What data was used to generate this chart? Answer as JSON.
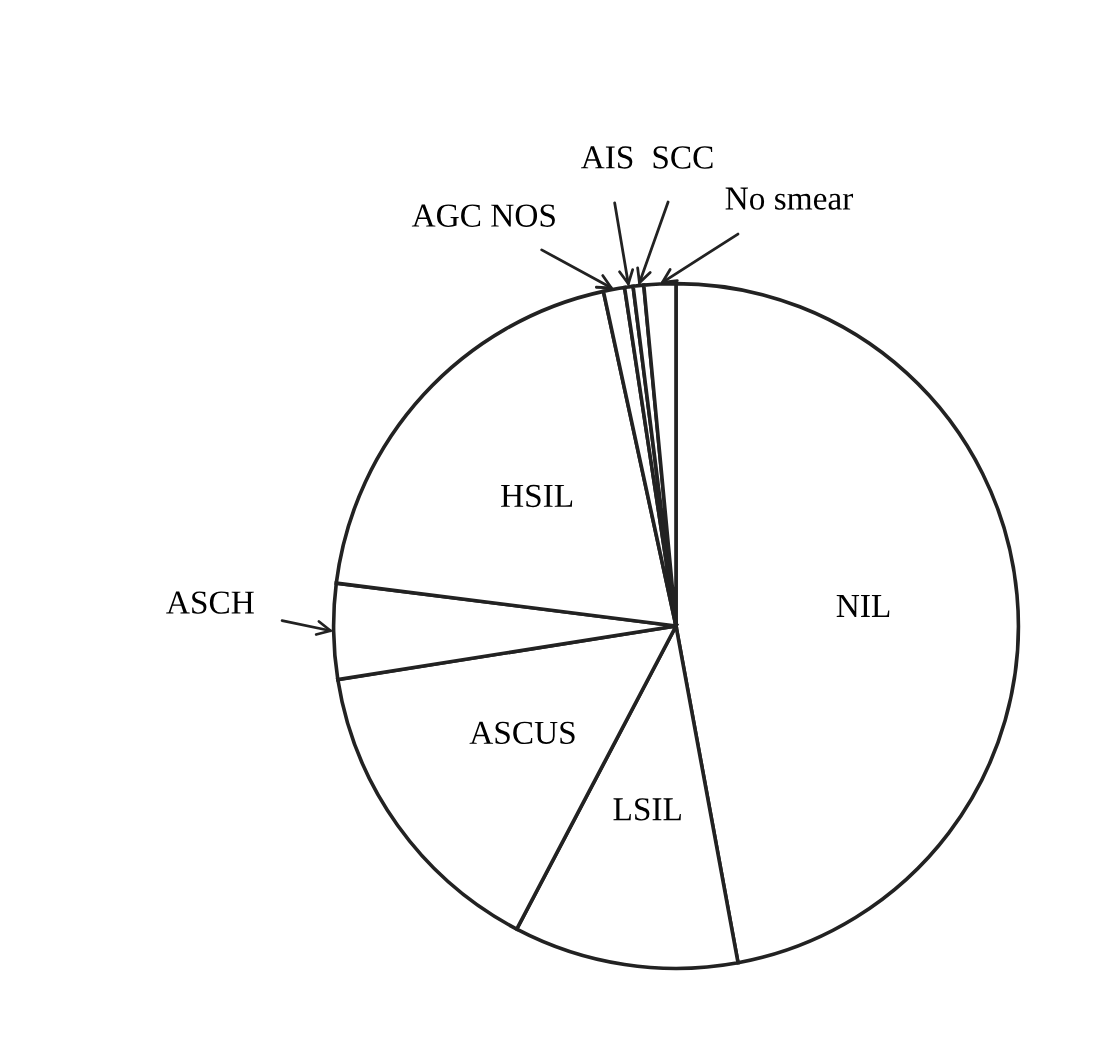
{
  "chart_data": {
    "type": "pie",
    "categories": [
      "NIL",
      "LSIL",
      "ASCUS",
      "ASCH",
      "HSIL",
      "AGC NOS",
      "AIS",
      "SCC",
      "No smear"
    ],
    "values": [
      47.1,
      10.6,
      14.8,
      4.5,
      19.6,
      1.0,
      0.4,
      0.5,
      1.5
    ],
    "colors": [
      "#ffffff",
      "#ffffff",
      "#ffffff",
      "#ffffff",
      "#ffffff",
      "#ffffff",
      "#ffffff",
      "#ffffff",
      "#ffffff"
    ]
  }
}
